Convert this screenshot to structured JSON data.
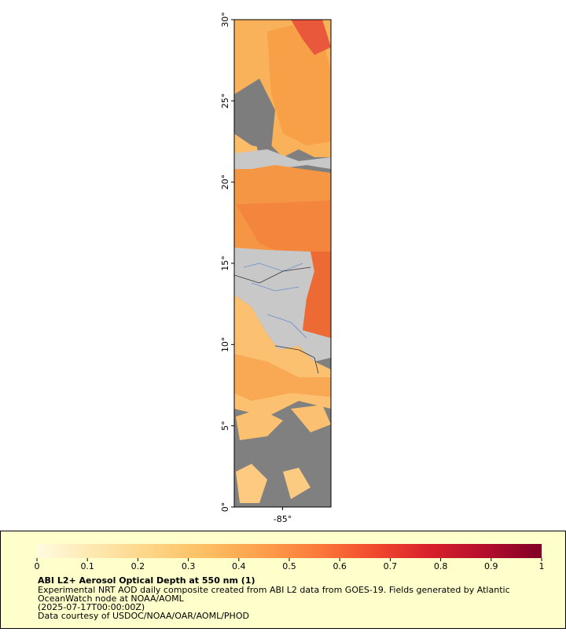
{
  "map": {
    "ylim": [
      0,
      30
    ],
    "yticks": [
      {
        "value": 0,
        "label": "0°"
      },
      {
        "value": 5,
        "label": "5°"
      },
      {
        "value": 10,
        "label": "10°"
      },
      {
        "value": 15,
        "label": "15°"
      },
      {
        "value": 20,
        "label": "20°"
      },
      {
        "value": 25,
        "label": "25°"
      },
      {
        "value": 30,
        "label": "30°"
      }
    ],
    "xlim": [
      -88,
      -82
    ],
    "xticks": [
      {
        "value": -85,
        "label": "-85°"
      }
    ]
  },
  "colorbar": {
    "range": [
      0,
      1
    ],
    "ticks": [
      0,
      0.1,
      0.2,
      0.3,
      0.4,
      0.5,
      0.6,
      0.7,
      0.8,
      0.9,
      1
    ],
    "colors": [
      "#fffbe0",
      "#fee8b0",
      "#fed587",
      "#fdbf63",
      "#fca04c",
      "#fb7a3b",
      "#f24a2e",
      "#d8202b",
      "#b40d2c",
      "#800026"
    ]
  },
  "legend": {
    "title": "ABI L2+ Aerosol Optical Depth at 550 nm (1)",
    "lines": [
      "Experimental NRT AOD daily composite created from ABI L2 data from GOES-19. Fields generated by Atlantic",
      "OceanWatch node at NOAA/AOML",
      "(2025-07-17T00:00:00Z)",
      "Data courtesy of USDOC/NOAA/OAR/AOML/PHOD"
    ]
  }
}
